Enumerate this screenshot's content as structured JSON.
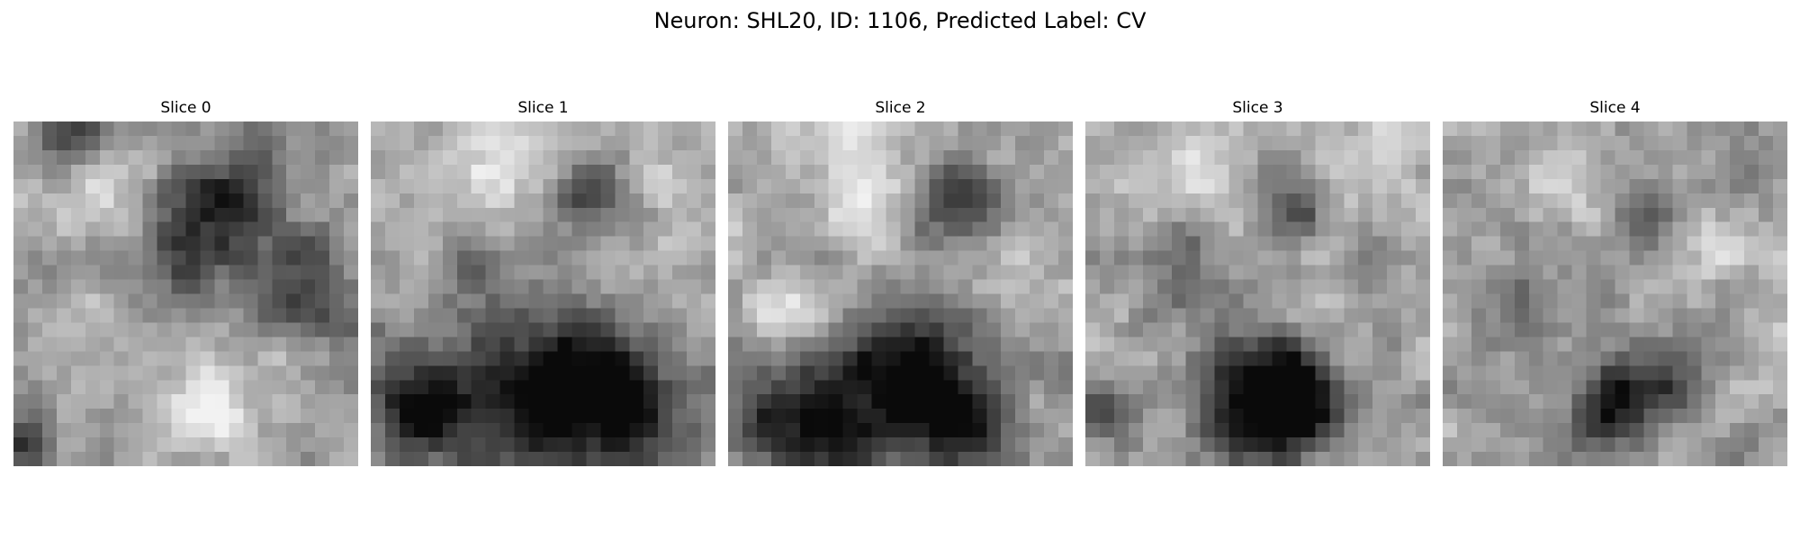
{
  "figure": {
    "title": "Neuron: SHL20, ID: 1106, Predicted Label: CV"
  },
  "panels": [
    {
      "title": "Slice 0"
    },
    {
      "title": "Slice 1"
    },
    {
      "title": "Slice 2"
    },
    {
      "title": "Slice 3"
    },
    {
      "title": "Slice 4"
    }
  ],
  "image_style": {
    "colormap": "grayscale",
    "grid_cells": 24,
    "dark_color": "#0a0a0a",
    "light_color": "#f2f2f2"
  }
}
